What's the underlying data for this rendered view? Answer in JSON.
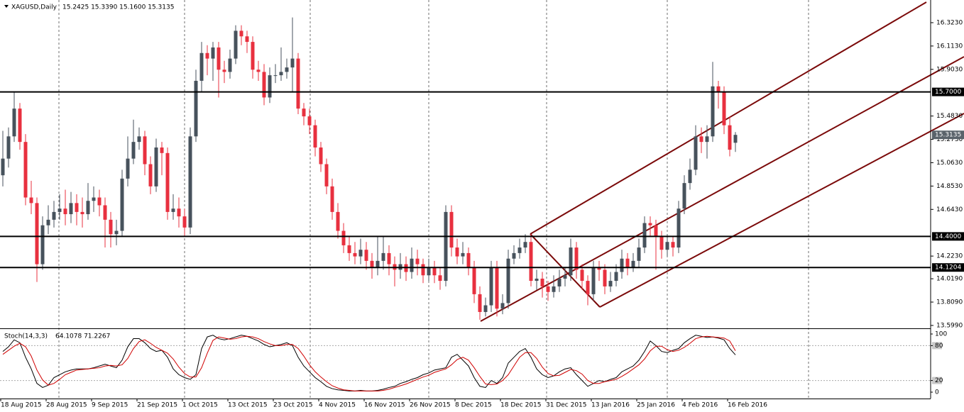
{
  "chart_data": {
    "type": "candlestick",
    "title": "XAGUSD,Daily",
    "ohlc_text": "15.2425 15.3390 15.1600 15.3135",
    "categories": [
      "18 Aug 2015",
      null,
      null,
      null,
      null,
      null,
      null,
      null,
      "28 Aug 2015",
      null,
      null,
      null,
      null,
      null,
      null,
      null,
      "9 Sep 2015",
      null,
      null,
      null,
      null,
      null,
      null,
      null,
      "21 Sep 2015",
      null,
      null,
      null,
      null,
      null,
      null,
      null,
      "1 Oct 2015",
      null,
      null,
      null,
      null,
      null,
      null,
      null,
      "13 Oct 2015",
      null,
      null,
      null,
      null,
      null,
      null,
      null,
      "23 Oct 2015",
      null,
      null,
      null,
      null,
      null,
      null,
      null,
      "4 Nov 2015",
      null,
      null,
      null,
      null,
      null,
      null,
      null,
      "16 Nov 2015",
      null,
      null,
      null,
      null,
      null,
      null,
      null,
      "26 Nov 2015",
      null,
      null,
      null,
      null,
      null,
      null,
      null,
      "8 Dec 2015",
      null,
      null,
      null,
      null,
      null,
      null,
      null,
      "18 Dec 2015",
      null,
      null,
      null,
      null,
      null,
      null,
      null,
      "31 Dec 2015",
      null,
      null,
      null,
      null,
      null,
      null,
      null,
      "13 Jan 2016",
      null,
      null,
      null,
      null,
      null,
      null,
      null,
      "25 Jan 2016",
      null,
      null,
      null,
      null,
      null,
      null,
      null,
      "4 Feb 2016",
      null,
      null,
      null,
      null,
      null,
      null,
      null,
      "16 Feb 2016",
      null
    ],
    "open": [
      14.95,
      15.1,
      15.3,
      15.55,
      15.25,
      14.75,
      14.7,
      14.15,
      14.5,
      14.55,
      14.62,
      14.65,
      14.6,
      14.7,
      14.62,
      14.6,
      14.72,
      14.75,
      14.68,
      14.55,
      14.42,
      14.45,
      14.92,
      15.1,
      15.25,
      15.3,
      15.05,
      14.85,
      15.2,
      15.15,
      14.62,
      14.65,
      14.58,
      14.48,
      15.3,
      15.8,
      16.05,
      16.0,
      16.1,
      15.9,
      15.88,
      16.0,
      16.25,
      16.2,
      16.15,
      15.9,
      15.88,
      15.65,
      15.85,
      15.85,
      15.88,
      15.92,
      16.0,
      15.55,
      15.48,
      15.4,
      15.2,
      15.05,
      14.85,
      14.62,
      14.45,
      14.32,
      14.25,
      14.22,
      14.28,
      14.18,
      14.12,
      14.18,
      14.25,
      14.15,
      14.1,
      14.15,
      14.08,
      14.2,
      14.15,
      14.05,
      14.12,
      14.05,
      14.0,
      14.62,
      14.3,
      14.22,
      14.25,
      14.12,
      13.88,
      13.72,
      13.78,
      14.12,
      13.75,
      13.8,
      14.2,
      14.25,
      14.3,
      14.35,
      14.0,
      14.02,
      13.95,
      13.9,
      13.95,
      14.02,
      14.05,
      14.3,
      14.1,
      14.0,
      13.88,
      14.12,
      14.1,
      13.95,
      14.0,
      14.08,
      14.2,
      14.12,
      14.18,
      14.3,
      14.52,
      14.5,
      14.4,
      14.28,
      14.35,
      14.3,
      14.65,
      14.88,
      15.0,
      15.3,
      15.25,
      15.3,
      15.75,
      15.7,
      15.4,
      15.2425
    ],
    "high": [
      15.35,
      15.38,
      15.7,
      15.6,
      15.32,
      14.9,
      14.75,
      14.58,
      14.68,
      14.72,
      14.78,
      14.82,
      14.8,
      14.78,
      14.75,
      14.88,
      14.85,
      14.82,
      14.75,
      14.62,
      14.55,
      15.0,
      15.3,
      15.45,
      15.38,
      15.35,
      15.12,
      15.28,
      15.25,
      15.2,
      14.78,
      14.75,
      14.65,
      15.38,
      15.9,
      16.15,
      16.12,
      16.15,
      16.15,
      15.98,
      16.08,
      16.3,
      16.3,
      16.25,
      16.2,
      15.98,
      15.95,
      15.92,
      15.95,
      16.1,
      16.0,
      16.37,
      16.05,
      15.6,
      15.55,
      15.45,
      15.25,
      15.1,
      14.92,
      14.7,
      14.52,
      14.4,
      14.35,
      14.38,
      14.35,
      14.25,
      14.4,
      14.4,
      14.32,
      14.22,
      14.25,
      14.22,
      14.3,
      14.28,
      14.2,
      14.2,
      14.18,
      14.12,
      14.68,
      14.68,
      14.38,
      14.35,
      14.3,
      14.18,
      13.95,
      13.85,
      14.18,
      14.18,
      13.88,
      14.28,
      14.32,
      14.38,
      14.42,
      14.42,
      14.1,
      14.08,
      14.0,
      14.05,
      14.1,
      14.12,
      14.38,
      14.35,
      14.15,
      14.05,
      14.18,
      14.18,
      14.15,
      14.08,
      14.15,
      14.28,
      14.25,
      14.25,
      14.38,
      14.58,
      14.58,
      14.55,
      14.45,
      14.42,
      14.4,
      14.72,
      14.95,
      15.1,
      15.4,
      15.38,
      15.4,
      15.97,
      15.8,
      15.75,
      15.48,
      15.339
    ],
    "low": [
      14.85,
      15.02,
      15.25,
      15.18,
      14.68,
      14.6,
      13.99,
      14.1,
      14.42,
      14.48,
      14.55,
      14.5,
      14.52,
      14.5,
      14.48,
      14.55,
      14.62,
      14.58,
      14.3,
      14.3,
      14.32,
      14.4,
      14.85,
      15.05,
      15.18,
      14.95,
      14.78,
      14.8,
      14.95,
      14.55,
      14.55,
      14.48,
      14.4,
      14.42,
      15.25,
      15.7,
      15.85,
      15.8,
      15.65,
      15.78,
      15.82,
      15.95,
      16.12,
      16.05,
      15.82,
      15.8,
      15.58,
      15.6,
      15.78,
      15.8,
      15.82,
      15.7,
      15.5,
      15.4,
      15.32,
      15.12,
      14.98,
      14.78,
      14.55,
      14.38,
      14.25,
      14.18,
      14.15,
      14.15,
      14.1,
      14.02,
      14.05,
      14.1,
      14.05,
      13.95,
      14.02,
      14.0,
      14.02,
      14.05,
      13.98,
      14.0,
      13.98,
      13.92,
      13.95,
      14.22,
      14.15,
      14.15,
      14.05,
      13.8,
      13.65,
      13.68,
      13.72,
      13.68,
      13.7,
      13.75,
      14.15,
      14.2,
      14.25,
      13.95,
      13.92,
      13.85,
      13.82,
      13.85,
      13.9,
      13.95,
      14.0,
      14.02,
      13.92,
      13.78,
      13.82,
      14.0,
      13.88,
      13.9,
      13.95,
      14.02,
      14.05,
      14.08,
      14.12,
      14.25,
      14.4,
      14.1,
      14.2,
      14.22,
      14.22,
      14.25,
      14.6,
      14.82,
      14.95,
      15.15,
      15.1,
      15.25,
      15.55,
      15.32,
      15.12,
      15.16
    ],
    "close": [
      15.1,
      15.3,
      15.55,
      15.25,
      14.75,
      14.7,
      14.15,
      14.5,
      14.55,
      14.62,
      14.65,
      14.6,
      14.7,
      14.62,
      14.6,
      14.72,
      14.75,
      14.68,
      14.55,
      14.42,
      14.45,
      14.92,
      15.1,
      15.25,
      15.3,
      15.05,
      14.85,
      15.2,
      15.15,
      14.62,
      14.65,
      14.58,
      14.48,
      15.3,
      15.8,
      16.05,
      16.0,
      16.1,
      15.9,
      15.88,
      16.0,
      16.25,
      16.2,
      16.15,
      15.9,
      15.88,
      15.65,
      15.85,
      15.85,
      15.88,
      15.92,
      16.0,
      15.55,
      15.48,
      15.4,
      15.2,
      15.05,
      14.85,
      14.62,
      14.45,
      14.32,
      14.25,
      14.22,
      14.28,
      14.18,
      14.12,
      14.18,
      14.25,
      14.15,
      14.1,
      14.15,
      14.08,
      14.2,
      14.15,
      14.05,
      14.12,
      14.05,
      14.0,
      14.62,
      14.3,
      14.22,
      14.25,
      14.12,
      13.88,
      13.72,
      13.78,
      14.12,
      13.75,
      13.8,
      14.2,
      14.25,
      14.3,
      14.35,
      14.0,
      14.02,
      13.95,
      13.9,
      13.95,
      14.02,
      14.05,
      14.3,
      14.1,
      14.0,
      13.88,
      14.12,
      14.1,
      13.95,
      14.0,
      14.08,
      14.2,
      14.12,
      14.18,
      14.3,
      14.52,
      14.5,
      14.4,
      14.28,
      14.35,
      14.3,
      14.65,
      14.88,
      15.0,
      15.3,
      15.25,
      15.3,
      15.75,
      15.7,
      15.4,
      15.18,
      15.3135
    ],
    "last_label": "15.3135",
    "up_color": "#47525c",
    "down_color": "#e8303f",
    "ylim": [
      13.573,
      16.527
    ],
    "yticks": [
      {
        "value": 16.323,
        "label": "16.3230"
      },
      {
        "value": 16.113,
        "label": "16.1130"
      },
      {
        "value": 15.903,
        "label": "15.9030"
      },
      {
        "value": 15.483,
        "label": "15.4830"
      },
      {
        "value": 15.273,
        "label": "15.2730"
      },
      {
        "value": 15.063,
        "label": "15.0630"
      },
      {
        "value": 14.853,
        "label": "14.8530"
      },
      {
        "value": 14.643,
        "label": "14.6430"
      },
      {
        "value": 14.223,
        "label": "14.2230"
      },
      {
        "value": 14.019,
        "label": "14.0190"
      },
      {
        "value": 13.809,
        "label": "13.8090"
      },
      {
        "value": 13.599,
        "label": "13.5990"
      }
    ],
    "levels": [
      {
        "value": 15.7,
        "label": "15.7000"
      },
      {
        "value": 14.4,
        "label": "14.4000"
      },
      {
        "value": 14.1204,
        "label": "14.1204"
      }
    ],
    "stoch": {
      "type": "line",
      "title": "Stoch(14,3,3)",
      "value_text": "64.1078 71.2267",
      "ylim": [
        0,
        100
      ],
      "yticks": [
        100,
        80,
        20,
        0
      ],
      "levels": [
        80,
        20
      ],
      "series": [
        {
          "color": "#000000",
          "values": [
            70,
            78,
            90,
            85,
            60,
            40,
            15,
            8,
            12,
            25,
            30,
            35,
            38,
            40,
            40,
            40,
            42,
            45,
            48,
            45,
            42,
            55,
            78,
            92,
            92,
            85,
            75,
            70,
            72,
            60,
            40,
            30,
            25,
            22,
            30,
            75,
            95,
            98,
            92,
            90,
            92,
            95,
            98,
            96,
            92,
            88,
            82,
            78,
            80,
            82,
            85,
            80,
            60,
            45,
            35,
            25,
            18,
            10,
            6,
            4,
            3,
            2,
            2,
            3,
            2,
            2,
            3,
            5,
            8,
            10,
            15,
            18,
            22,
            25,
            30,
            33,
            38,
            40,
            42,
            60,
            65,
            55,
            45,
            25,
            10,
            8,
            20,
            15,
            25,
            50,
            60,
            70,
            75,
            60,
            40,
            30,
            25,
            28,
            35,
            40,
            42,
            30,
            20,
            10,
            15,
            20,
            18,
            22,
            25,
            35,
            40,
            45,
            55,
            70,
            88,
            80,
            70,
            68,
            72,
            75,
            85,
            92,
            98,
            96,
            94,
            95,
            93,
            90,
            75,
            64.1078
          ]
        },
        {
          "color": "#d00000",
          "values": [
            65,
            72,
            79,
            84,
            78,
            62,
            38,
            21,
            12,
            15,
            22,
            30,
            34,
            38,
            39,
            40,
            41,
            42,
            45,
            46,
            45,
            47,
            58,
            75,
            87,
            90,
            84,
            77,
            72,
            67,
            57,
            43,
            32,
            26,
            26,
            42,
            67,
            89,
            95,
            93,
            91,
            92,
            95,
            96,
            95,
            92,
            87,
            83,
            80,
            80,
            82,
            82,
            75,
            62,
            47,
            35,
            26,
            18,
            11,
            7,
            4,
            3,
            2,
            2,
            2,
            2,
            2,
            3,
            5,
            8,
            11,
            14,
            18,
            22,
            26,
            29,
            34,
            37,
            40,
            47,
            56,
            60,
            55,
            42,
            27,
            14,
            13,
            14,
            20,
            30,
            45,
            60,
            68,
            68,
            58,
            43,
            32,
            28,
            29,
            34,
            39,
            37,
            31,
            20,
            15,
            15,
            18,
            20,
            22,
            27,
            33,
            40,
            47,
            57,
            71,
            79,
            79,
            73,
            70,
            72,
            77,
            84,
            92,
            95,
            96,
            95,
            94,
            93,
            88,
            71.2267
          ]
        }
      ]
    }
  }
}
